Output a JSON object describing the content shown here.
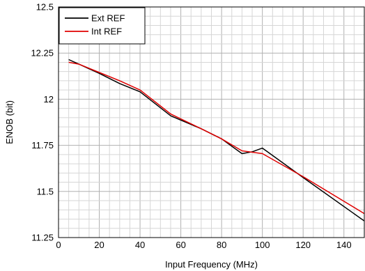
{
  "chart_data": {
    "type": "line",
    "title": "",
    "xlabel": "Input Frequency (MHz)",
    "ylabel": "ENOB (bit)",
    "xlim": [
      0,
      150
    ],
    "ylim": [
      11.25,
      12.5
    ],
    "xticks": [
      0,
      20,
      40,
      60,
      80,
      100,
      120,
      140
    ],
    "xtick_labels": [
      "0",
      "20",
      "40",
      "60",
      "80",
      "100",
      "120",
      "140"
    ],
    "yticks": [
      11.25,
      11.5,
      11.75,
      12,
      12.25,
      12.5
    ],
    "ytick_labels": [
      "11.25",
      "11.5",
      "11.75",
      "12",
      "12.25",
      "12.5"
    ],
    "grid": true,
    "legend_position": "top-left",
    "series": [
      {
        "name": "Ext REF",
        "color": "#000000",
        "x": [
          5,
          10,
          20,
          30,
          40,
          55,
          70,
          80,
          90,
          95,
          100,
          120,
          150
        ],
        "y": [
          12.215,
          12.19,
          12.14,
          12.085,
          12.04,
          11.91,
          11.84,
          11.785,
          11.705,
          11.715,
          11.735,
          11.575,
          11.34
        ]
      },
      {
        "name": "Int REF",
        "color": "#e00000",
        "x": [
          5,
          10,
          20,
          30,
          40,
          55,
          70,
          80,
          90,
          100,
          120,
          150
        ],
        "y": [
          12.2,
          12.19,
          12.145,
          12.1,
          12.05,
          11.92,
          11.84,
          11.785,
          11.72,
          11.705,
          11.58,
          11.38
        ]
      }
    ]
  }
}
